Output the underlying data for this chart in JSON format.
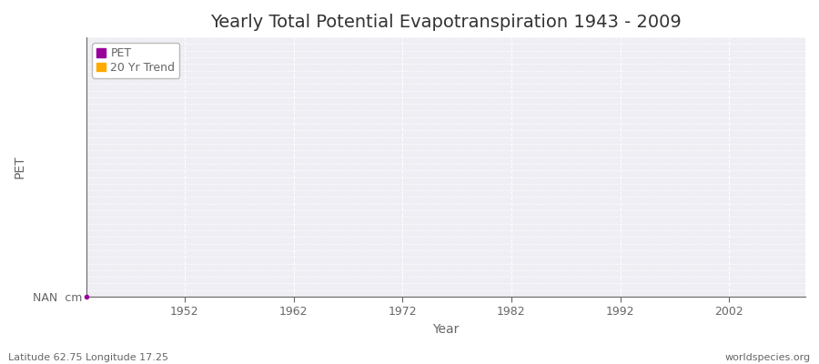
{
  "title": "Yearly Total Potential Evapotranspiration 1943 - 2009",
  "xlabel": "Year",
  "ylabel": "PET",
  "xlim": [
    1943,
    2009
  ],
  "ylim_label": "NAN  cm",
  "x_ticks": [
    1952,
    1962,
    1972,
    1982,
    1992,
    2002
  ],
  "plot_bg_color": "#eeeef4",
  "fig_bg_color": "#ffffff",
  "grid_color": "#ffffff",
  "axis_color": "#666666",
  "title_color": "#333333",
  "legend_entries": [
    "PET",
    "20 Yr Trend"
  ],
  "legend_colors": [
    "#990099",
    "#ffaa00"
  ],
  "footer_left": "Latitude 62.75 Longitude 17.25",
  "footer_right": "worldspecies.org",
  "title_fontsize": 14,
  "label_fontsize": 10,
  "tick_fontsize": 9,
  "footer_fontsize": 8,
  "legend_fontsize": 9
}
